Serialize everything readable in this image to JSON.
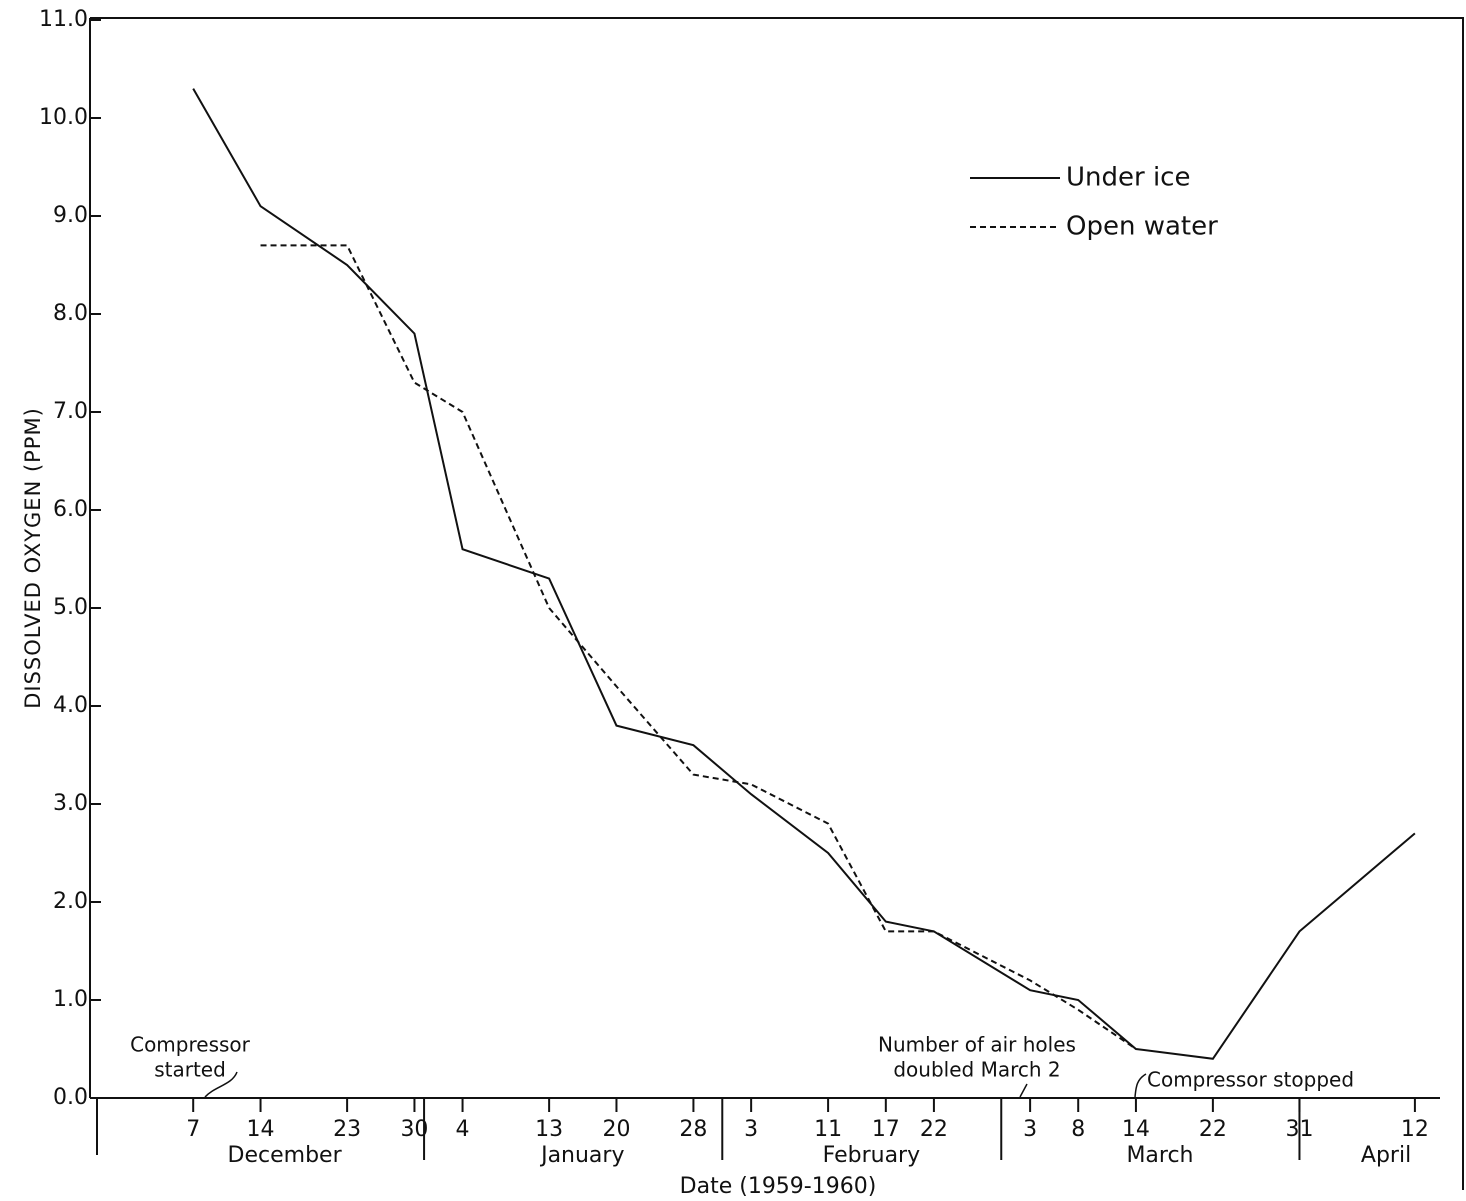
{
  "chart_data": {
    "type": "line",
    "y_label": "DISSOLVED OXYGEN (PPM)",
    "x_label": "Date (1959-1960)",
    "x": [
      "1959-12-07",
      "1959-12-14",
      "1959-12-23",
      "1959-12-30",
      "1960-01-04",
      "1960-01-13",
      "1960-01-20",
      "1960-01-28",
      "1960-02-03",
      "1960-02-11",
      "1960-02-17",
      "1960-02-22",
      "1960-03-03",
      "1960-03-08",
      "1960-03-14",
      "1960-03-22",
      "1960-03-31",
      "1960-04-12"
    ],
    "series": [
      {
        "name": "Under ice",
        "color": "#111111",
        "dash": false,
        "values": [
          10.3,
          9.1,
          8.5,
          7.8,
          5.6,
          5.3,
          3.8,
          3.6,
          3.1,
          2.5,
          1.8,
          1.7,
          1.1,
          1.0,
          0.5,
          0.4,
          1.7,
          2.7
        ]
      },
      {
        "name": "Open water",
        "color": "#111111",
        "dash": true,
        "values": [
          null,
          8.7,
          8.7,
          7.3,
          7.0,
          5.0,
          4.2,
          3.3,
          3.2,
          2.8,
          1.7,
          1.7,
          1.2,
          0.9,
          0.5,
          null,
          null,
          null
        ]
      }
    ],
    "xlim": [
      "1959-11-27",
      "1960-04-17"
    ],
    "xticks": [
      {
        "value": "1959-12-07",
        "label": "7"
      },
      {
        "value": "1959-12-14",
        "label": "14"
      },
      {
        "value": "1959-12-23",
        "label": "23"
      },
      {
        "value": "1959-12-30",
        "label": "30"
      },
      {
        "value": "1960-01-04",
        "label": "4"
      },
      {
        "value": "1960-01-13",
        "label": "13"
      },
      {
        "value": "1960-01-20",
        "label": "20"
      },
      {
        "value": "1960-01-28",
        "label": "28"
      },
      {
        "value": "1960-02-03",
        "label": "3"
      },
      {
        "value": "1960-02-11",
        "label": "11"
      },
      {
        "value": "1960-02-17",
        "label": "17"
      },
      {
        "value": "1960-02-22",
        "label": "22"
      },
      {
        "value": "1960-03-03",
        "label": "3"
      },
      {
        "value": "1960-03-08",
        "label": "8"
      },
      {
        "value": "1960-03-14",
        "label": "14"
      },
      {
        "value": "1960-03-22",
        "label": "22"
      },
      {
        "value": "1960-03-31",
        "label": "31"
      },
      {
        "value": "1960-04-12",
        "label": "12"
      }
    ],
    "months": [
      "December",
      "January",
      "February",
      "March",
      "April"
    ],
    "ylim": [
      0,
      11
    ],
    "yticks": [
      {
        "value": 0,
        "label": "0.0"
      },
      {
        "value": 1,
        "label": "1.0"
      },
      {
        "value": 2,
        "label": "2.0"
      },
      {
        "value": 3,
        "label": "3.0"
      },
      {
        "value": 4,
        "label": "4.0"
      },
      {
        "value": 5,
        "label": "5.0"
      },
      {
        "value": 6,
        "label": "6.0"
      },
      {
        "value": 7,
        "label": "7.0"
      },
      {
        "value": 8,
        "label": "8.0"
      },
      {
        "value": 9,
        "label": "9.0"
      },
      {
        "value": 10,
        "label": "10.0"
      },
      {
        "value": 11,
        "label": "11.0"
      }
    ],
    "grid": false,
    "legend": "upper right",
    "annotations": [
      {
        "lines": [
          "Compressor",
          "started"
        ]
      },
      {
        "lines": [
          "Number of air holes",
          "doubled March 2"
        ]
      },
      {
        "lines": [
          "Compressor stopped"
        ]
      }
    ]
  }
}
